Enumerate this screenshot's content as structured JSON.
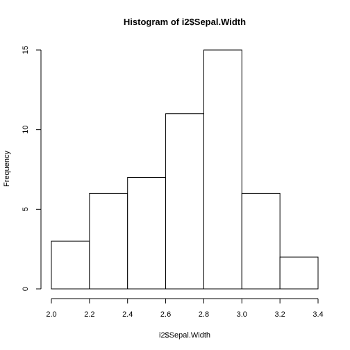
{
  "chart_data": {
    "type": "bar",
    "title": "Histogram of i2$Sepal.Width",
    "xlabel": "i2$Sepal.Width",
    "ylabel": "Frequency",
    "bins": [
      {
        "from": 2.0,
        "to": 2.2,
        "count": 3
      },
      {
        "from": 2.2,
        "to": 2.4,
        "count": 6
      },
      {
        "from": 2.4,
        "to": 2.6,
        "count": 7
      },
      {
        "from": 2.6,
        "to": 2.8,
        "count": 11
      },
      {
        "from": 2.8,
        "to": 3.0,
        "count": 15
      },
      {
        "from": 3.0,
        "to": 3.2,
        "count": 6
      },
      {
        "from": 3.2,
        "to": 3.4,
        "count": 2
      }
    ],
    "xlim": [
      2.0,
      3.4
    ],
    "ylim": [
      0,
      15
    ],
    "x_ticks": [
      "2.0",
      "2.2",
      "2.4",
      "2.6",
      "2.8",
      "3.0",
      "3.2",
      "3.4"
    ],
    "y_ticks": [
      "0",
      "5",
      "10",
      "15"
    ],
    "grid": false,
    "bar_fill": "#ffffff",
    "bar_stroke": "#000000"
  }
}
